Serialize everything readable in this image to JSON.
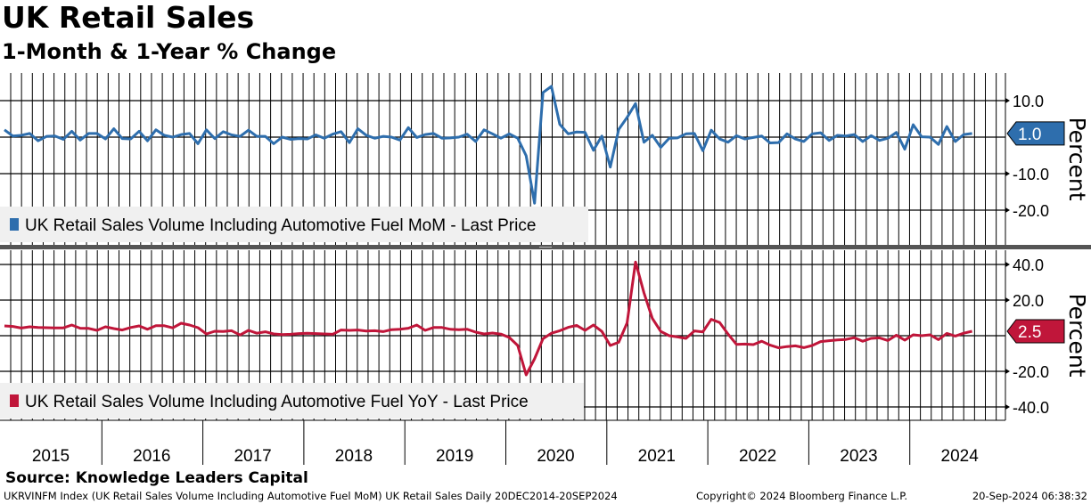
{
  "title": "UK Retail Sales",
  "subtitle": "1-Month & 1-Year % Change",
  "source": "Source: Knowledge Leaders Capital",
  "footer": {
    "left": "UKRVINFM Index (UK Retail Sales Volume Including Automotive Fuel MoM) UK Retail Sales  Daily 20DEC2014-20SEP2024",
    "center": "Copyright© 2024 Bloomberg Finance L.P.",
    "right": "20-Sep-2024 06:38:32"
  },
  "chart_data": [
    {
      "type": "line",
      "name": "UK Retail Sales Volume Including Automotive Fuel MoM - Last Price",
      "legend": "UK Retail Sales Volume Including Automotive Fuel MoM - Last Price",
      "color": "#2e6ead",
      "ylabel": "Percent",
      "ylim": [
        -27,
        17
      ],
      "yticks": [
        "10.0",
        "-10.0",
        "-20.0"
      ],
      "ytick_values": [
        10,
        -10,
        -20
      ],
      "last_value": "1.0",
      "x_start": "2015-01",
      "x_freq": "monthly",
      "values": [
        2.0,
        0.3,
        0.5,
        1.0,
        -1.0,
        0.2,
        0.3,
        -0.6,
        1.6,
        -0.8,
        1.0,
        1.0,
        -0.5,
        2.3,
        -0.4,
        -0.5,
        1.6,
        -1.0,
        2.0,
        0.5,
        0.0,
        0.7,
        1.0,
        -1.8,
        2.0,
        -0.4,
        1.5,
        0.6,
        0.2,
        1.9,
        0.2,
        0.2,
        -1.8,
        0.0,
        -0.6,
        -0.4,
        -0.5,
        0.6,
        -0.3,
        0.8,
        1.5,
        -1.5,
        2.3,
        0.5,
        -0.3,
        0.2,
        0.0,
        -0.8,
        2.6,
        -0.1,
        0.7,
        1.0,
        -0.3,
        -0.2,
        0.0,
        0.8,
        -1.2,
        2.0,
        0.9,
        -0.3,
        0.9,
        -0.3,
        -5.1,
        -18.1,
        12.2,
        13.9,
        3.5,
        0.9,
        1.4,
        1.3,
        -3.6,
        0.3,
        -8.2,
        2.1,
        5.4,
        9.2,
        -1.4,
        0.5,
        -2.8,
        -0.3,
        -0.2,
        0.9,
        1.0,
        -3.7,
        1.9,
        -0.5,
        -1.4,
        0.4,
        -0.5,
        -0.1,
        0.3,
        -1.6,
        -1.5,
        0.9,
        -0.5,
        -1.2,
        0.9,
        1.2,
        -0.9,
        0.5,
        0.3,
        0.7,
        -1.2,
        0.4,
        -0.9,
        -0.3,
        1.3,
        -3.3,
        3.4,
        0.1,
        0.0,
        -2.0,
        2.9,
        -1.2,
        0.7,
        1.0
      ]
    },
    {
      "type": "line",
      "name": "UK Retail Sales Volume Including Automotive Fuel YoY - Last Price",
      "legend": "UK Retail Sales Volume Including Automotive Fuel YoY - Last Price",
      "color": "#c0163a",
      "ylabel": "Percent",
      "ylim": [
        -48,
        48
      ],
      "yticks": [
        "40.0",
        "20.0",
        "-20.0",
        "-40.0"
      ],
      "ytick_values": [
        40,
        20,
        -20,
        -40
      ],
      "last_value": "2.5",
      "x_start": "2015-01",
      "x_freq": "monthly",
      "values": [
        5.5,
        5.2,
        4.3,
        5.0,
        4.6,
        4.5,
        4.4,
        4.4,
        6.0,
        4.2,
        4.1,
        3.0,
        5.0,
        4.0,
        3.2,
        4.6,
        5.5,
        3.6,
        5.6,
        5.6,
        4.4,
        7.0,
        6.0,
        4.5,
        1.0,
        2.5,
        2.4,
        2.8,
        0.4,
        3.0,
        1.4,
        2.2,
        1.0,
        0.6,
        0.8,
        1.2,
        1.4,
        1.2,
        1.0,
        0.8,
        3.2,
        3.0,
        3.2,
        2.6,
        2.8,
        2.3,
        3.4,
        3.6,
        4.2,
        6.0,
        3.0,
        4.6,
        4.6,
        3.6,
        3.4,
        3.6,
        2.0,
        1.0,
        1.5,
        0.9,
        -1.0,
        -5.5,
        -22.0,
        -13.0,
        -1.7,
        1.4,
        2.8,
        4.7,
        5.8,
        3.0,
        6.0,
        2.4,
        -5.5,
        -3.7,
        7.2,
        41.4,
        24.1,
        9.7,
        2.4,
        0.0,
        -0.7,
        -1.5,
        2.7,
        2.1,
        9.2,
        7.4,
        0.9,
        -4.9,
        -4.7,
        -5.0,
        -3.1,
        -5.3,
        -6.8,
        -6.1,
        -5.7,
        -6.7,
        -5.5,
        -3.3,
        -2.8,
        -2.4,
        -2.1,
        -1.1,
        -3.1,
        -1.5,
        -1.2,
        -2.7,
        0.3,
        -2.5,
        0.5,
        0.0,
        0.5,
        -2.2,
        1.3,
        -0.2,
        1.4,
        2.5
      ]
    }
  ],
  "x_axis": {
    "labels": [
      "2015",
      "2016",
      "2017",
      "2018",
      "2019",
      "2020",
      "2021",
      "2022",
      "2023",
      "2024"
    ]
  }
}
